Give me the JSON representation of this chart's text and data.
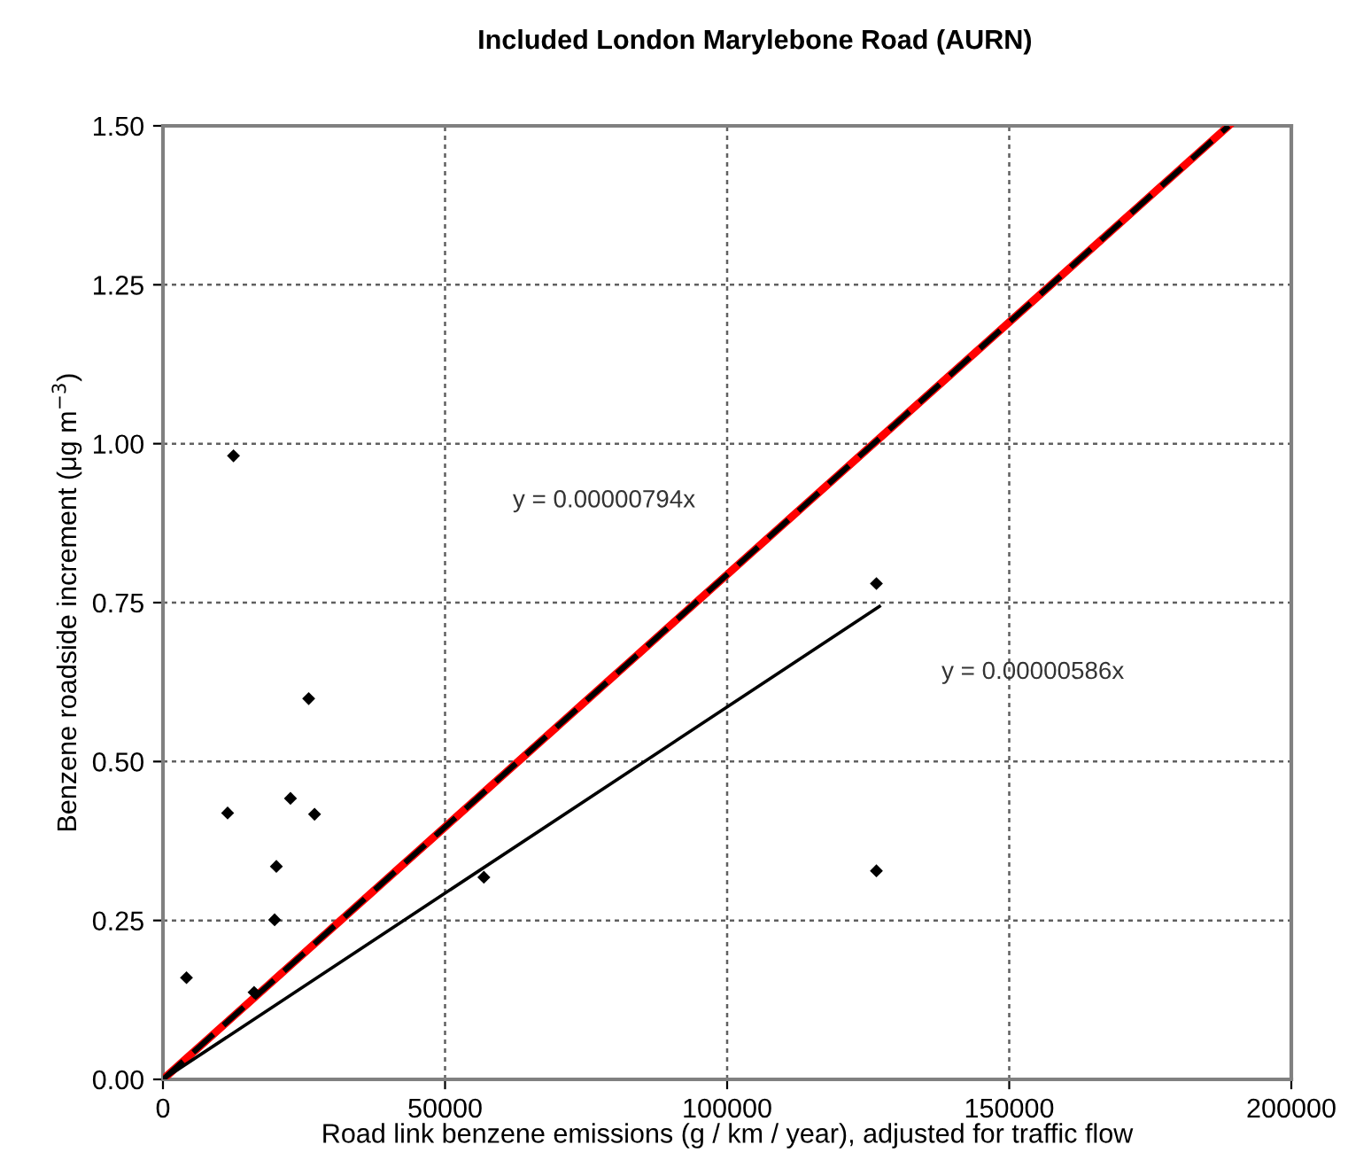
{
  "chart_data": {
    "type": "scatter",
    "title": "Included London Marylebone Road (AURN)",
    "xlabel": "Road link benzene emissions (g / km / year), adjusted for traffic flow",
    "ylabel": "Benzene roadside increment (μg m$^{−3}$)",
    "series": [
      {
        "type": "line",
        "color": "#ff0000",
        "line_style": "solid",
        "marker": "none",
        "x": [
          0,
          188900
        ],
        "values": [
          0,
          1.5
        ]
      },
      {
        "type": "line",
        "color": "#000000",
        "line_style": "dashed",
        "marker": "none",
        "x": [
          0,
          188900
        ],
        "values": [
          0,
          1.5
        ]
      },
      {
        "type": "line",
        "color": "#000000",
        "line_style": "solid",
        "marker": "none",
        "x": [
          0,
          127000
        ],
        "values": [
          0,
          0.744
        ]
      },
      {
        "color": "#000000",
        "marker": "diamond",
        "x": [
          4170,
          12500,
          11460,
          16150,
          19790,
          20100,
          22600,
          25830,
          26870,
          56880,
          126460,
          126460
        ],
        "values": [
          0.16,
          0.981,
          0.419,
          0.137,
          0.251,
          0.335,
          0.442,
          0.599,
          0.417,
          0.318,
          0.78,
          0.328
        ]
      }
    ],
    "annotations": [
      "y = 0.00000794x",
      "y = 0.00000586x"
    ],
    "xlim": [
      0,
      200000
    ],
    "xticks": [
      0,
      50000,
      100000,
      150000,
      200000
    ],
    "ylim": [
      0,
      1.5
    ],
    "yticks": [
      {
        "value": 0,
        "label": "0.00"
      },
      {
        "value": 0.25,
        "label": "0.25"
      },
      {
        "value": 0.5,
        "label": "0.50"
      },
      {
        "value": 0.75,
        "label": "0.75"
      },
      {
        "value": 1.0,
        "label": "1.00"
      },
      {
        "value": 1.25,
        "label": "1.25"
      },
      {
        "value": 1.5,
        "label": "1.50"
      }
    ],
    "grid": true,
    "legend": false
  }
}
